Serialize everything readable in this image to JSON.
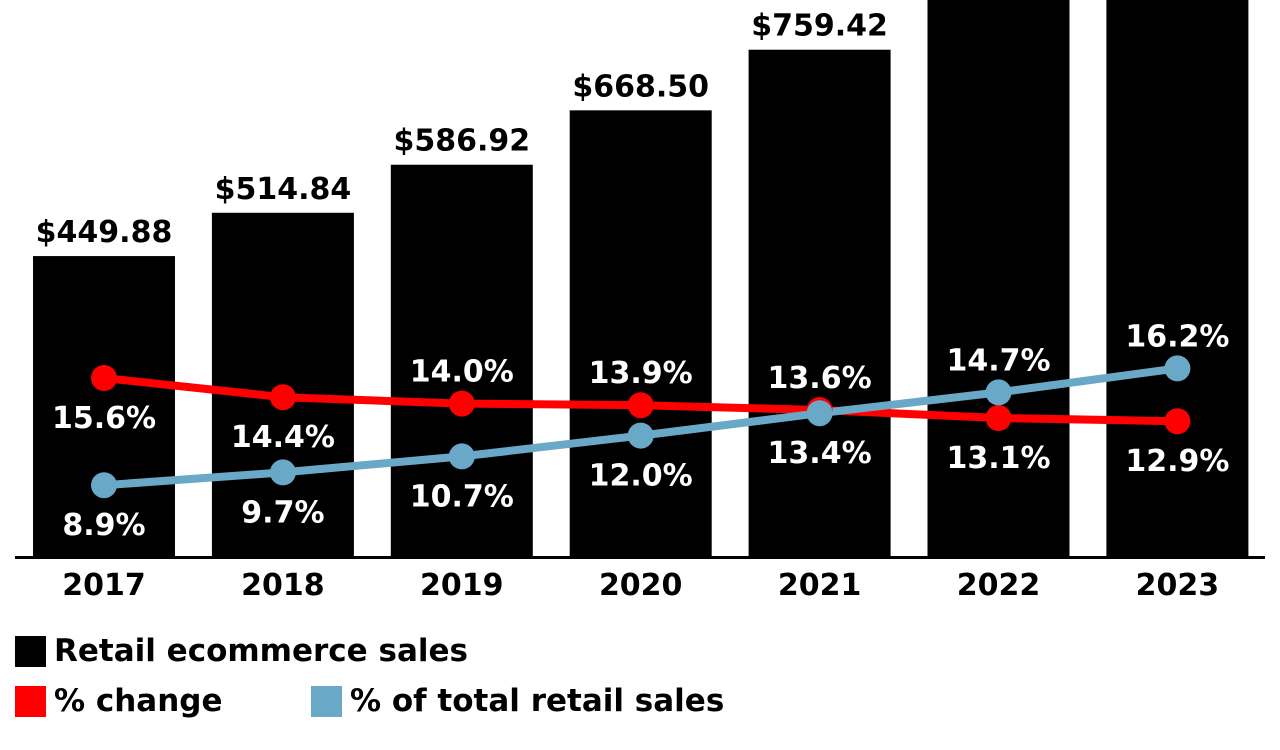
{
  "chart_data": {
    "type": "bar",
    "categories": [
      "2017",
      "2018",
      "2019",
      "2020",
      "2021",
      "2022",
      "2023"
    ],
    "series": [
      {
        "name": "Retail ecommerce sales",
        "type": "bar",
        "color": "#000000",
        "values": [
          449.88,
          514.84,
          586.92,
          668.5,
          759.42,
          null,
          null
        ],
        "labels": [
          "$449.88",
          "$514.84",
          "$586.92",
          "$668.50",
          "$759.42",
          "",
          ""
        ],
        "note": "2022 and 2023 bars extend beyond the top of the image"
      },
      {
        "name": "% change",
        "type": "line",
        "color": "#ff0000",
        "values": [
          15.6,
          14.4,
          14.0,
          13.9,
          13.6,
          13.1,
          12.9
        ],
        "labels": [
          "15.6%",
          "14.4%",
          "14.0%",
          "13.9%",
          "13.6%",
          "13.1%",
          "12.9%"
        ]
      },
      {
        "name": "% of total retail sales",
        "type": "line",
        "color": "#6aa8c8",
        "values": [
          8.9,
          9.7,
          10.7,
          12.0,
          13.4,
          14.7,
          16.2
        ],
        "labels": [
          "8.9%",
          "9.7%",
          "10.7%",
          "12.0%",
          "13.4%",
          "14.7%",
          "16.2%"
        ]
      }
    ],
    "ylim": [
      0,
      834
    ],
    "legend": "bottom-left"
  },
  "legend": {
    "bar": "Retail ecommerce sales",
    "change": "% change",
    "share": "% of total retail sales"
  }
}
